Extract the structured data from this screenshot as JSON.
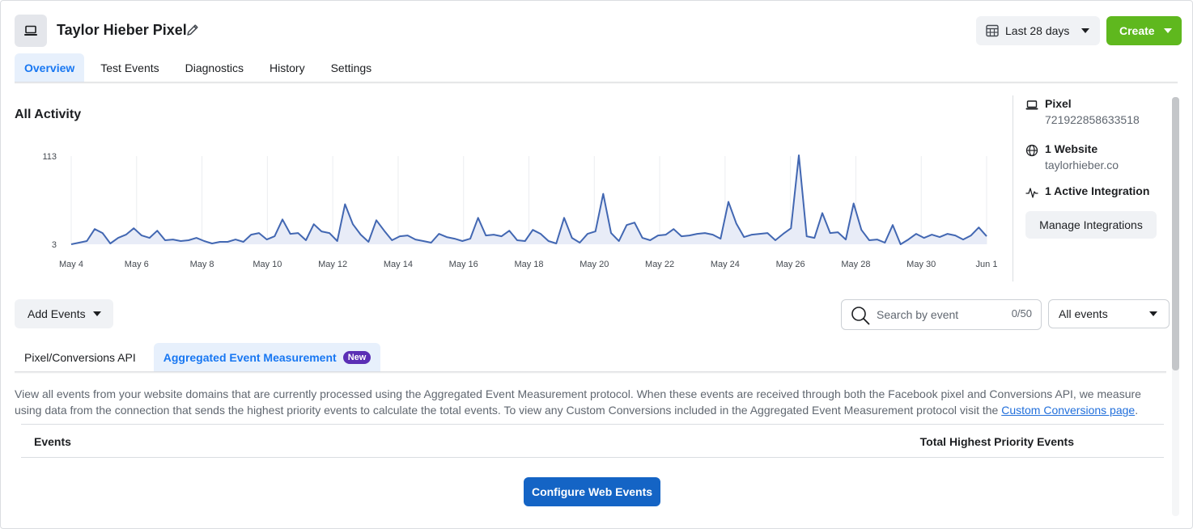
{
  "header": {
    "title": "Taylor Hieber Pixel",
    "date_range_label": "Last 28 days",
    "create_label": "Create"
  },
  "tabs": [
    {
      "label": "Overview",
      "active": true
    },
    {
      "label": "Test Events"
    },
    {
      "label": "Diagnostics"
    },
    {
      "label": "History"
    },
    {
      "label": "Settings"
    }
  ],
  "activity": {
    "title": "All Activity"
  },
  "chart_data": {
    "type": "line",
    "y_ticks": [
      "113",
      "3"
    ],
    "ylim": [
      3,
      113
    ],
    "x_tick_labels": [
      "May 4",
      "May 6",
      "May 8",
      "May 10",
      "May 12",
      "May 14",
      "May 16",
      "May 18",
      "May 20",
      "May 22",
      "May 24",
      "May 26",
      "May 28",
      "May 30",
      "Jun 1"
    ],
    "x_start": "May 4",
    "x_end": "Jun 1",
    "values": [
      3,
      5,
      7,
      22,
      17,
      4,
      11,
      15,
      23,
      14,
      11,
      20,
      8,
      9,
      7,
      8,
      11,
      7,
      4,
      6,
      6,
      9,
      6,
      15,
      17,
      9,
      13,
      34,
      16,
      17,
      8,
      28,
      19,
      17,
      7,
      53,
      28,
      15,
      6,
      33,
      20,
      8,
      13,
      14,
      9,
      7,
      5,
      16,
      12,
      10,
      7,
      10,
      36,
      14,
      15,
      13,
      20,
      8,
      7,
      21,
      16,
      7,
      4,
      36,
      11,
      5,
      16,
      19,
      66,
      17,
      7,
      27,
      30,
      11,
      8,
      14,
      15,
      22,
      13,
      14,
      16,
      17,
      15,
      10,
      56,
      29,
      12,
      15,
      16,
      17,
      8,
      16,
      23,
      114,
      13,
      11,
      42,
      17,
      18,
      9,
      54,
      21,
      8,
      9,
      5,
      27,
      3,
      9,
      16,
      11,
      15,
      12,
      16,
      14,
      9,
      14,
      24,
      13
    ],
    "series_color": "#4267b2",
    "grid": "vertical"
  },
  "side_panel": {
    "pixel_label": "Pixel",
    "pixel_id": "721922858633518",
    "website_label": "1 Website",
    "website_domain": "taylorhieber.co",
    "integration_label": "1 Active Integration",
    "manage_label": "Manage Integrations"
  },
  "events_toolbar": {
    "add_events_label": "Add Events",
    "search_placeholder": "Search by event",
    "search_count": "0/50",
    "filter_value": "All events"
  },
  "sub_tabs": [
    {
      "label": "Pixel/Conversions API"
    },
    {
      "label": "Aggregated Event Measurement",
      "active": true,
      "badge": "New"
    }
  ],
  "description": {
    "text": "View all events from your website domains that are currently processed using the Aggregated Event Measurement protocol. When these events are received through both the Facebook pixel and Conversions API, we measure using data from the connection that sends the highest priority events to calculate the total events. To view any Custom Conversions included in the Aggregated Event Measurement protocol visit the ",
    "link": "Custom Conversions page",
    "end": "."
  },
  "table": {
    "col_events": "Events",
    "col_total": "Total Highest Priority Events"
  },
  "configure_label": "Configure Web Events",
  "colors": {
    "accent_blue": "#1877f2",
    "create_green": "#5fb81e",
    "configure_blue": "#1464c5",
    "badge_purple": "#5b2fb5"
  }
}
